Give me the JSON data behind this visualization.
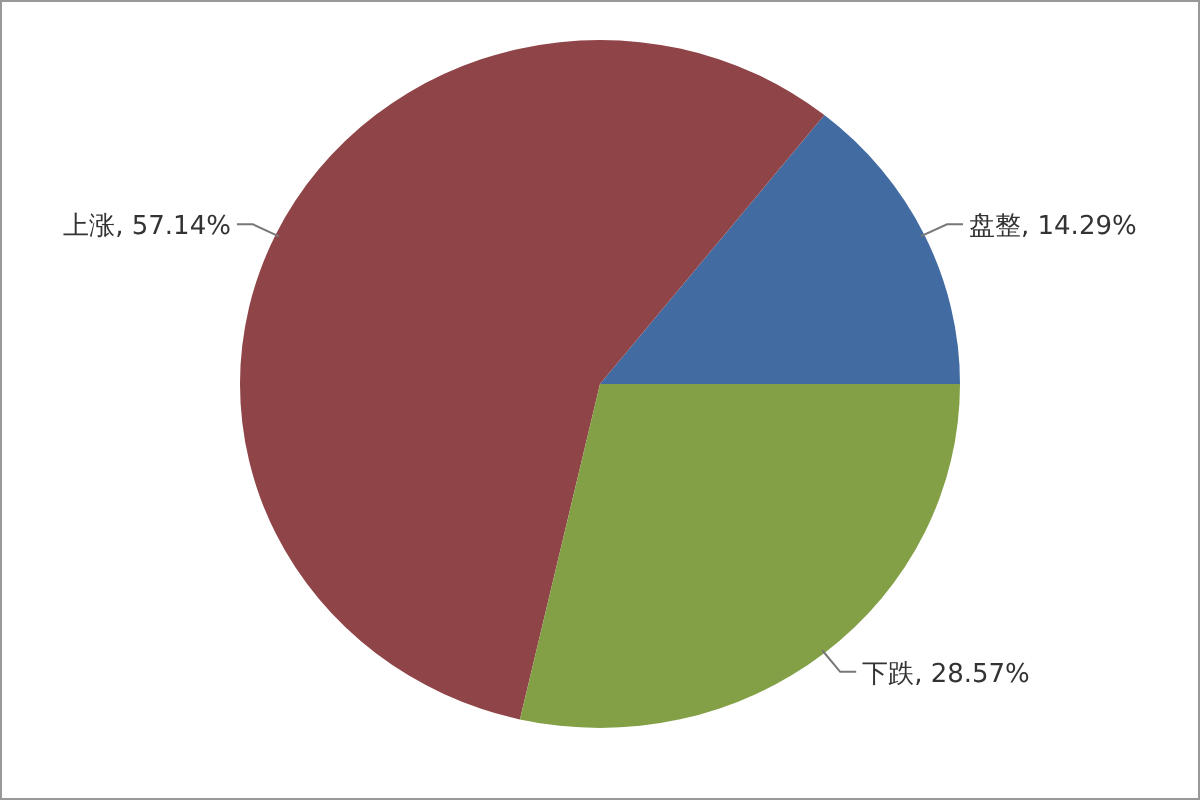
{
  "chart_data": {
    "type": "pie",
    "categories": [
      "盘整",
      "上涨",
      "下跌"
    ],
    "values": [
      14.29,
      57.14,
      28.57
    ],
    "value_labels": [
      "14.29%",
      "57.14%",
      "28.57%"
    ],
    "colors": [
      "#416ba1",
      "#8f4448",
      "#83a046"
    ],
    "legend": false
  }
}
